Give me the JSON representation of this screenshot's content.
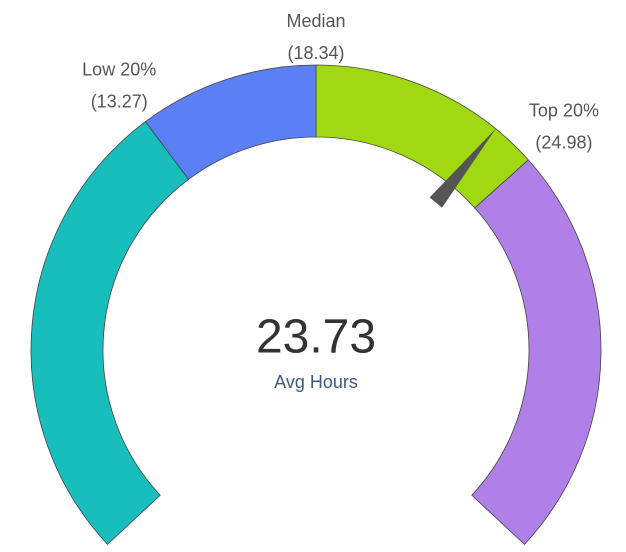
{
  "chart_data": {
    "type": "gauge",
    "value": 23.73,
    "label": "Avg Hours",
    "ylim": [
      0,
      36.68
    ],
    "categories": [
      "Low 20%",
      "Median",
      "Top 20%"
    ],
    "values": [
      13.27,
      18.34,
      24.98
    ],
    "value_labels": [
      "(13.27)",
      "(18.34)",
      "(24.98)"
    ],
    "colors": [
      "#17bebb",
      "#5b7ff5",
      "#a0d911",
      "#b07fe8"
    ],
    "needle_color": "#555555"
  }
}
